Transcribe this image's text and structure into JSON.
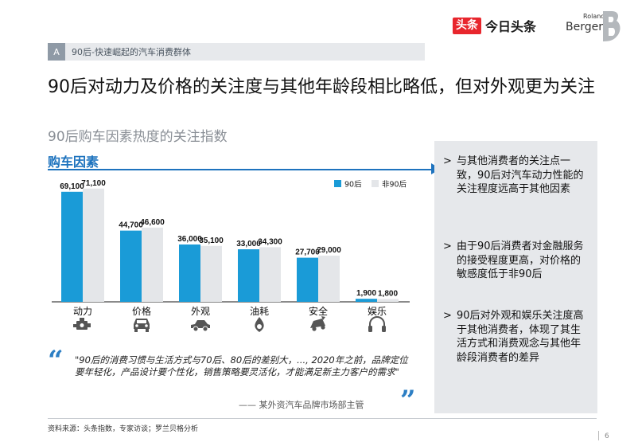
{
  "header": {
    "toutiao_badge": "头条",
    "toutiao_text": "今日头条",
    "rb_roland": "Roland",
    "rb_berger": "Berger"
  },
  "section": {
    "letter": "A",
    "title": "90后-快速崛起的汽车消费群体"
  },
  "headline": "90后对动力及价格的关注度与其他年龄段相比略低，但对外观更为关注",
  "subhead": "90后购车因素热度的关注指数",
  "factors_label": "购车因素",
  "chart_data": {
    "type": "bar",
    "categories": [
      "动力",
      "价格",
      "外观",
      "油耗",
      "安全",
      "娱乐"
    ],
    "series": [
      {
        "name": "90后",
        "values": [
          69100,
          44700,
          36000,
          33000,
          27700,
          1900
        ],
        "labels": [
          "69,100",
          "44,700",
          "36,000",
          "33,000",
          "27,700",
          "1,900"
        ],
        "color": "#1a9bd7"
      },
      {
        "name": "非90后",
        "values": [
          71100,
          46600,
          35100,
          34300,
          29000,
          1800
        ],
        "labels": [
          "71,100",
          "46,600",
          "35,100",
          "34,300",
          "29,000",
          "1,800"
        ],
        "color": "#e4e6e9"
      }
    ],
    "icons": [
      "engine-icon",
      "car-front-icon",
      "car-side-icon",
      "fuel-drop-icon",
      "car-crash-icon",
      "headphones-icon"
    ],
    "legend_position": "top-right",
    "ylim": [
      0,
      75000
    ],
    "grid": false
  },
  "quote": {
    "body": "\"90后的消费习惯与生活方式与70后、80后的差别大，..., 2020年之前，品牌定位要年轻化，产品设计要个性化，销售策略要灵活化，才能满足新主力客户的需求\"",
    "source": "—— 某外资汽车品牌市场部主管"
  },
  "panel": {
    "items": [
      "与其他消费者的关注点一致，90后对汽车动力性能的关注程度远高于其他因素",
      "由于90后消费者对金融服务的接受程度更高，对价格的敏感度低于非90后",
      "90后对外观和娱乐关注度高于其他消费者，体现了其生活方式和消费观念与其他年龄段消费者的差异"
    ]
  },
  "footer": {
    "source": "资料来源：头条指数，专家访谈；罗兰贝格分析",
    "page": "6"
  }
}
